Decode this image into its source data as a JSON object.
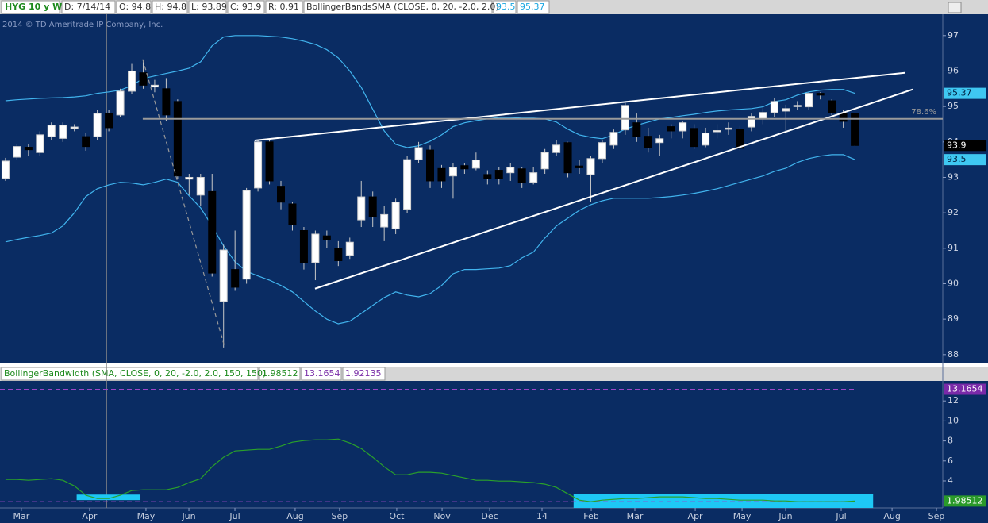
{
  "header": {
    "symbol": "HYG 10 y W",
    "date": "D: 7/14/14",
    "open": "O: 94.8",
    "high": "H: 94.8",
    "low": "L: 93.89",
    "close": "C: 93.9",
    "range": "R: 0.91",
    "study": "BollingerBandsSMA (CLOSE, 0, 20, -2.0, 2.0)",
    "copyright": "2014 © TD Ameritrade IP Company, Inc."
  },
  "chart_data": [
    {
      "type": "candlestick",
      "xlim": [
        -0.48,
        81.67
      ],
      "ylim": [
        87.75,
        97.6
      ],
      "yticks": [
        88,
        89,
        90,
        91,
        92,
        93,
        94,
        95,
        96,
        97
      ],
      "up_color": "#ffffff",
      "down_color": "#000000",
      "open": [
        92.97,
        93.57,
        93.85,
        93.7,
        94.15,
        94.1,
        94.38,
        94.15,
        94.15,
        94.8,
        94.76,
        95.43,
        95.95,
        95.55,
        95.5,
        95.14,
        92.95,
        92.5,
        92.6,
        89.5,
        90.4,
        90.13,
        92.7,
        94.0,
        92.75,
        92.25,
        91.5,
        90.6,
        91.35,
        91.0,
        90.8,
        91.8,
        92.45,
        91.6,
        91.55,
        92.1,
        93.5,
        93.77,
        93.25,
        93.04,
        93.33,
        93.26,
        93.08,
        93.2,
        93.13,
        93.24,
        92.86,
        93.24,
        93.7,
        93.98,
        93.32,
        93.08,
        93.53,
        93.91,
        94.34,
        94.54,
        94.16,
        93.98,
        94.43,
        94.31,
        94.38,
        93.91,
        94.31,
        94.38,
        94.36,
        94.42,
        94.65,
        94.83,
        94.87,
        95.02,
        94.99,
        95.37,
        95.16,
        94.8,
        94.8
      ],
      "high": [
        93.55,
        93.95,
        93.95,
        94.3,
        94.55,
        94.55,
        94.5,
        94.25,
        94.9,
        94.9,
        95.5,
        96.2,
        96.3,
        95.75,
        95.8,
        95.2,
        93.1,
        93.1,
        93.1,
        91.1,
        91.5,
        92.7,
        94.05,
        94.05,
        92.9,
        92.3,
        91.6,
        91.5,
        91.5,
        91.2,
        91.3,
        92.9,
        92.6,
        92.2,
        92.4,
        93.6,
        94.0,
        93.9,
        93.35,
        93.4,
        93.4,
        93.7,
        93.2,
        93.3,
        93.4,
        93.3,
        93.3,
        93.8,
        94.05,
        94.0,
        93.5,
        93.6,
        94.05,
        94.35,
        95.1,
        94.8,
        94.4,
        94.2,
        94.5,
        94.6,
        94.5,
        94.4,
        94.5,
        94.55,
        94.45,
        94.8,
        94.95,
        95.25,
        95.05,
        95.15,
        95.4,
        95.4,
        95.2,
        94.9,
        94.8
      ],
      "low": [
        92.9,
        93.5,
        93.6,
        93.6,
        94.05,
        94.0,
        94.3,
        93.75,
        94.05,
        94.3,
        94.7,
        95.35,
        95.5,
        95.4,
        94.6,
        92.95,
        92.5,
        92.2,
        90.2,
        88.2,
        89.8,
        90.0,
        92.6,
        92.8,
        92.1,
        91.5,
        90.4,
        90.1,
        91.0,
        90.5,
        90.7,
        91.6,
        91.6,
        91.2,
        91.4,
        92.0,
        93.4,
        92.7,
        92.7,
        92.4,
        93.1,
        93.2,
        92.8,
        92.8,
        92.9,
        92.7,
        92.8,
        93.1,
        93.6,
        93.0,
        93.1,
        92.3,
        93.4,
        93.8,
        94.2,
        94.0,
        93.7,
        93.6,
        94.1,
        94.1,
        93.8,
        93.85,
        94.1,
        94.2,
        93.75,
        94.3,
        94.5,
        94.7,
        94.3,
        94.9,
        94.9,
        95.2,
        94.75,
        94.4,
        93.89
      ],
      "close": [
        93.46,
        93.87,
        93.78,
        94.2,
        94.47,
        94.47,
        94.42,
        93.87,
        94.8,
        94.4,
        95.43,
        96.0,
        95.6,
        95.6,
        94.76,
        93.04,
        93.0,
        93.0,
        90.3,
        90.95,
        89.9,
        92.63,
        94.0,
        92.9,
        92.3,
        91.67,
        90.6,
        91.4,
        91.25,
        90.65,
        91.17,
        92.45,
        91.9,
        91.95,
        92.3,
        93.5,
        93.84,
        92.9,
        92.9,
        93.28,
        93.24,
        93.49,
        92.97,
        92.97,
        93.28,
        92.86,
        93.13,
        93.7,
        93.91,
        93.13,
        93.27,
        93.53,
        93.98,
        94.27,
        95.03,
        94.16,
        93.84,
        94.09,
        94.31,
        94.54,
        93.87,
        94.25,
        94.32,
        94.39,
        93.82,
        94.72,
        94.83,
        95.14,
        94.94,
        95.03,
        95.37,
        95.32,
        94.83,
        94.58,
        93.9
      ],
      "bands": [
        {
          "color": "#41b4ee",
          "values": [
            95.16,
            95.19,
            95.21,
            95.23,
            95.24,
            95.25,
            95.27,
            95.3,
            95.37,
            95.41,
            95.46,
            95.59,
            95.79,
            95.86,
            95.93,
            96.0,
            96.08,
            96.26,
            96.71,
            96.96,
            97.0,
            97.0,
            97.0,
            96.98,
            96.96,
            96.91,
            96.84,
            96.75,
            96.6,
            96.37,
            96.0,
            95.54,
            94.92,
            94.31,
            93.93,
            93.84,
            93.89,
            94.02,
            94.2,
            94.43,
            94.54,
            94.6,
            94.65,
            94.69,
            94.69,
            94.67,
            94.67,
            94.65,
            94.56,
            94.36,
            94.2,
            94.13,
            94.09,
            94.2,
            94.36,
            94.47,
            94.56,
            94.65,
            94.69,
            94.74,
            94.78,
            94.83,
            94.87,
            94.9,
            94.92,
            94.94,
            94.99,
            95.14,
            95.19,
            95.32,
            95.41,
            95.46,
            95.48,
            95.48,
            95.37
          ]
        },
        {
          "color": "#41b4ee",
          "values": [
            91.18,
            91.25,
            91.31,
            91.36,
            91.43,
            91.63,
            92.0,
            92.46,
            92.68,
            92.79,
            92.86,
            92.84,
            92.79,
            92.86,
            92.95,
            92.86,
            92.48,
            92.14,
            91.63,
            91.07,
            90.62,
            90.35,
            90.22,
            90.1,
            89.95,
            89.77,
            89.5,
            89.23,
            89.0,
            88.87,
            88.94,
            89.16,
            89.39,
            89.61,
            89.77,
            89.68,
            89.63,
            89.72,
            89.95,
            90.28,
            90.4,
            90.4,
            90.42,
            90.44,
            90.51,
            90.73,
            90.89,
            91.29,
            91.63,
            91.85,
            92.07,
            92.23,
            92.34,
            92.41,
            92.41,
            92.41,
            92.41,
            92.43,
            92.46,
            92.5,
            92.55,
            92.61,
            92.68,
            92.77,
            92.86,
            92.95,
            93.04,
            93.17,
            93.26,
            93.42,
            93.53,
            93.6,
            93.64,
            93.64,
            93.5
          ]
        }
      ],
      "trendlines": [
        {
          "x": [
            21.7,
            78.36
          ],
          "y": [
            94.04,
            95.95
          ],
          "color": "#ffffff",
          "dashed": false
        },
        {
          "x": [
            26.97,
            79.05
          ],
          "y": [
            89.86,
            95.48
          ],
          "color": "#ffffff",
          "dashed": false
        },
        {
          "x": [
            11.96,
            19.09
          ],
          "y": [
            96.33,
            88.22
          ],
          "color": "#9a9a9a",
          "dashed": true
        }
      ],
      "level": {
        "x": 11.96,
        "value": 94.65,
        "label": "78.6%",
        "color": "#9a9a9a"
      }
    },
    {
      "type": "line",
      "title": "BollingerBandwidth (SMA, CLOSE, 0, 20, -2.0, 2.0, 150, 150)",
      "color": "#2aa12a",
      "xlim": [
        -0.48,
        81.67
      ],
      "ylim": [
        1.3,
        14
      ],
      "yticks": [
        4,
        6,
        8,
        10,
        12
      ],
      "values": [
        4.14,
        4.14,
        4.06,
        4.14,
        4.22,
        4.06,
        3.5,
        2.56,
        2.24,
        2.24,
        2.56,
        3.03,
        3.11,
        3.11,
        3.11,
        3.35,
        3.83,
        4.22,
        5.41,
        6.37,
        7.0,
        7.08,
        7.16,
        7.16,
        7.48,
        7.87,
        8.03,
        8.11,
        8.11,
        8.19,
        7.79,
        7.24,
        6.37,
        5.41,
        4.62,
        4.62,
        4.86,
        4.86,
        4.78,
        4.54,
        4.3,
        4.06,
        4.06,
        3.98,
        3.98,
        3.9,
        3.83,
        3.67,
        3.35,
        2.71,
        2.08,
        1.92,
        2.08,
        2.16,
        2.24,
        2.24,
        2.32,
        2.4,
        2.4,
        2.4,
        2.32,
        2.24,
        2.24,
        2.16,
        2.08,
        2.08,
        2.08,
        2.0,
        2.0,
        1.92,
        1.92,
        1.92,
        1.92,
        1.92,
        1.98512
      ],
      "high_level": 13.1654,
      "low_level": 1.92135,
      "level_color": "#9a46c8",
      "highlights": [
        {
          "x": [
            6.2,
            11.76
          ],
          "y": [
            2.08,
            2.63
          ],
          "color": "#1ec8f5"
        },
        {
          "x": [
            49.5,
            75.6
          ],
          "y": [
            1.3,
            2.71
          ],
          "color": "#1ec8f5"
        }
      ],
      "xticks": [
        {
          "value": 1.38,
          "label": "Mar"
        },
        {
          "value": 7.33,
          "label": "Apr"
        },
        {
          "value": 12.24,
          "label": "May"
        },
        {
          "value": 15.98,
          "label": "Jun"
        },
        {
          "value": 19.99,
          "label": "Jul"
        },
        {
          "value": 25.24,
          "label": "Aug"
        },
        {
          "value": 29.11,
          "label": "Sep"
        },
        {
          "value": 34.09,
          "label": "Oct"
        },
        {
          "value": 38.04,
          "label": "Nov"
        },
        {
          "value": 42.19,
          "label": "Dec"
        },
        {
          "value": 46.75,
          "label": "14"
        },
        {
          "value": 51.04,
          "label": "Feb"
        },
        {
          "value": 54.84,
          "label": "Mar"
        },
        {
          "value": 60.1,
          "label": "Apr"
        },
        {
          "value": 64.18,
          "label": "May"
        },
        {
          "value": 67.98,
          "label": "Jun"
        },
        {
          "value": 72.82,
          "label": "Jul"
        },
        {
          "value": 77.25,
          "label": "Aug"
        },
        {
          "value": 81.12,
          "label": "Sep"
        }
      ]
    }
  ]
}
